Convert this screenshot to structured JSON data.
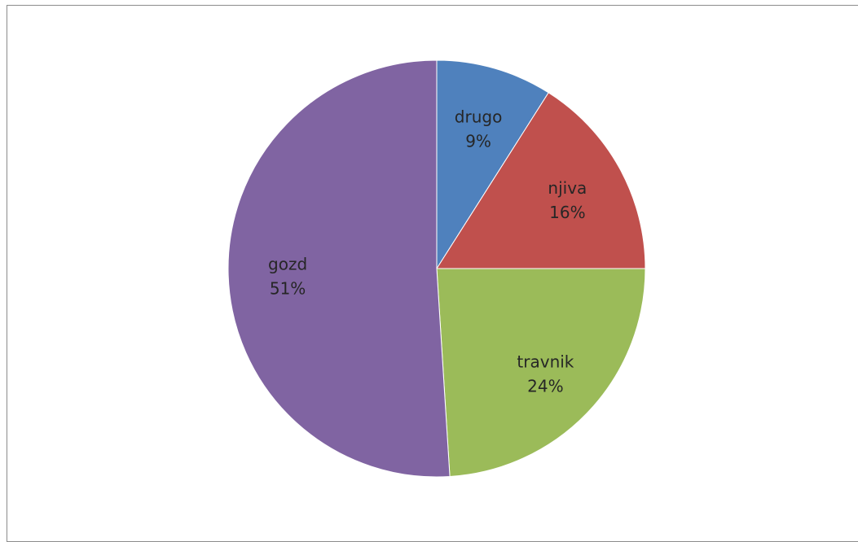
{
  "chart_data": {
    "type": "pie",
    "title": "",
    "start_angle_deg": 0,
    "direction": "clockwise",
    "legend": "none",
    "slices": [
      {
        "label": "drugo",
        "value": 9,
        "value_label": "9%",
        "color": "#4F81BD"
      },
      {
        "label": "njiva",
        "value": 16,
        "value_label": "16%",
        "color": "#C0504D"
      },
      {
        "label": "travnik",
        "value": 24,
        "value_label": "24%",
        "color": "#9BBB59"
      },
      {
        "label": "gozd",
        "value": 51,
        "value_label": "51%",
        "color": "#8064A2"
      }
    ]
  }
}
